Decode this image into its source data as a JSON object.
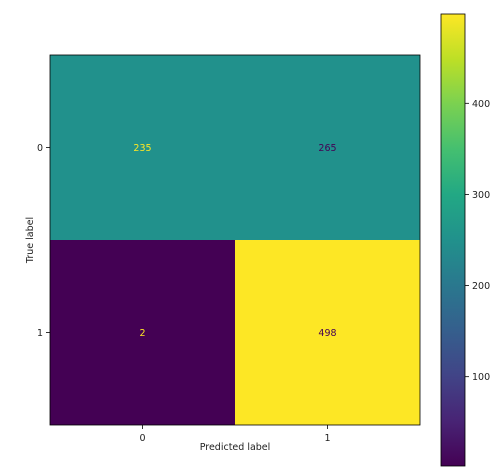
{
  "chart_data": {
    "type": "heatmap",
    "title": "",
    "xlabel": "Predicted label",
    "ylabel": "True label",
    "x_categories": [
      "0",
      "1"
    ],
    "y_categories": [
      "0",
      "1"
    ],
    "values": [
      [
        235,
        265
      ],
      [
        2,
        498
      ]
    ],
    "colormap": "viridis",
    "value_range": [
      2,
      498
    ],
    "colorbar": {
      "ticks": [
        "100",
        "200",
        "300",
        "400"
      ],
      "tick_values": [
        100,
        200,
        300,
        400
      ]
    },
    "colors": {
      "cell_0_0": "#21918c",
      "cell_0_1": "#21918c",
      "cell_1_0": "#440154",
      "cell_1_1": "#fde725",
      "text_on_dark": "#fde725",
      "text_on_light": "#440154"
    }
  }
}
